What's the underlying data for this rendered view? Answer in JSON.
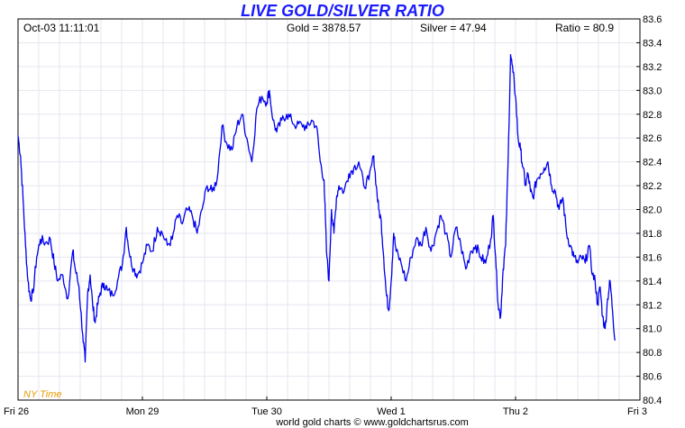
{
  "header": {
    "title": "LIVE GOLD/SILVER RATIO",
    "datetime": "Oct-03  11:11:01",
    "gold": "Gold = 3878.57",
    "silver": "Silver = 47.94",
    "ratio": "Ratio = 80.9"
  },
  "timezone_label": "NY Time",
  "credit": "world gold charts © www.goldchartsrus.com",
  "colors": {
    "title": "#1a1aff",
    "line": "#0000ee",
    "grid": "#e6e6f0",
    "timezone": "#e89a00"
  },
  "chart_data": {
    "type": "line",
    "title": "LIVE GOLD/SILVER RATIO",
    "xlabel": "",
    "ylabel": "",
    "ylim": [
      80.4,
      83.6
    ],
    "y_ticks": [
      "80.4",
      "80.6",
      "80.8",
      "81.0",
      "81.2",
      "81.4",
      "81.6",
      "81.8",
      "82.0",
      "82.2",
      "82.4",
      "82.6",
      "82.8",
      "83.0",
      "83.2",
      "83.4",
      "83.6"
    ],
    "x_ticks": [
      "Fri 26",
      "Mon 29",
      "Tue 30",
      "Wed 1",
      "Thu 2",
      "Fri 3"
    ],
    "x_tick_positions": [
      0,
      1,
      2,
      3,
      4,
      5
    ],
    "xlim": [
      0,
      5
    ],
    "grid": true,
    "series": [
      {
        "values": [
          [
            0.0,
            82.62
          ],
          [
            0.02,
            82.45
          ],
          [
            0.04,
            82.1
          ],
          [
            0.06,
            81.7
          ],
          [
            0.08,
            81.4
          ],
          [
            0.1,
            81.25
          ],
          [
            0.12,
            81.3
          ],
          [
            0.15,
            81.6
          ],
          [
            0.18,
            81.75
          ],
          [
            0.22,
            81.72
          ],
          [
            0.26,
            81.75
          ],
          [
            0.29,
            81.55
          ],
          [
            0.32,
            81.4
          ],
          [
            0.36,
            81.45
          ],
          [
            0.4,
            81.25
          ],
          [
            0.44,
            81.65
          ],
          [
            0.46,
            81.5
          ],
          [
            0.49,
            81.35
          ],
          [
            0.52,
            80.95
          ],
          [
            0.54,
            80.72
          ],
          [
            0.56,
            81.3
          ],
          [
            0.58,
            81.45
          ],
          [
            0.6,
            81.2
          ],
          [
            0.62,
            81.05
          ],
          [
            0.64,
            81.2
          ],
          [
            0.66,
            81.3
          ],
          [
            0.69,
            81.38
          ],
          [
            0.72,
            81.32
          ],
          [
            0.76,
            81.28
          ],
          [
            0.8,
            81.4
          ],
          [
            0.84,
            81.55
          ],
          [
            0.87,
            81.85
          ],
          [
            0.9,
            81.6
          ],
          [
            0.93,
            81.5
          ],
          [
            0.96,
            81.45
          ],
          [
            1.0,
            81.55
          ],
          [
            1.04,
            81.7
          ],
          [
            1.08,
            81.65
          ],
          [
            1.12,
            81.85
          ],
          [
            1.16,
            81.8
          ],
          [
            1.2,
            81.7
          ],
          [
            1.24,
            81.75
          ],
          [
            1.28,
            81.95
          ],
          [
            1.32,
            81.88
          ],
          [
            1.36,
            82.0
          ],
          [
            1.4,
            81.95
          ],
          [
            1.44,
            81.8
          ],
          [
            1.48,
            82.0
          ],
          [
            1.52,
            82.2
          ],
          [
            1.56,
            82.15
          ],
          [
            1.6,
            82.25
          ],
          [
            1.64,
            82.7
          ],
          [
            1.68,
            82.55
          ],
          [
            1.72,
            82.5
          ],
          [
            1.76,
            82.7
          ],
          [
            1.8,
            82.8
          ],
          [
            1.84,
            82.6
          ],
          [
            1.88,
            82.4
          ],
          [
            1.92,
            82.85
          ],
          [
            1.96,
            82.95
          ],
          [
            2.0,
            82.9
          ],
          [
            2.02,
            83.0
          ],
          [
            2.05,
            82.75
          ],
          [
            2.08,
            82.65
          ],
          [
            2.12,
            82.75
          ],
          [
            2.16,
            82.8
          ],
          [
            2.2,
            82.75
          ],
          [
            2.24,
            82.7
          ],
          [
            2.28,
            82.72
          ],
          [
            2.32,
            82.68
          ],
          [
            2.36,
            82.75
          ],
          [
            2.4,
            82.7
          ],
          [
            2.43,
            82.4
          ],
          [
            2.46,
            82.25
          ],
          [
            2.48,
            81.65
          ],
          [
            2.5,
            81.4
          ],
          [
            2.52,
            82.0
          ],
          [
            2.54,
            81.8
          ],
          [
            2.56,
            82.1
          ],
          [
            2.58,
            82.2
          ],
          [
            2.62,
            82.15
          ],
          [
            2.66,
            82.3
          ],
          [
            2.7,
            82.35
          ],
          [
            2.74,
            82.4
          ],
          [
            2.78,
            82.2
          ],
          [
            2.82,
            82.25
          ],
          [
            2.86,
            82.45
          ],
          [
            2.88,
            82.2
          ],
          [
            2.9,
            82.0
          ],
          [
            2.92,
            81.9
          ],
          [
            2.94,
            81.6
          ],
          [
            2.96,
            81.3
          ],
          [
            2.98,
            81.15
          ],
          [
            3.0,
            81.4
          ],
          [
            3.02,
            81.8
          ],
          [
            3.04,
            81.65
          ],
          [
            3.08,
            81.55
          ],
          [
            3.12,
            81.4
          ],
          [
            3.16,
            81.6
          ],
          [
            3.2,
            81.75
          ],
          [
            3.24,
            81.7
          ],
          [
            3.28,
            81.85
          ],
          [
            3.32,
            81.65
          ],
          [
            3.36,
            81.8
          ],
          [
            3.4,
            81.95
          ],
          [
            3.44,
            81.8
          ],
          [
            3.48,
            81.6
          ],
          [
            3.52,
            81.85
          ],
          [
            3.56,
            81.7
          ],
          [
            3.6,
            81.5
          ],
          [
            3.64,
            81.65
          ],
          [
            3.68,
            81.7
          ],
          [
            3.72,
            81.6
          ],
          [
            3.76,
            81.55
          ],
          [
            3.8,
            81.75
          ],
          [
            3.82,
            81.95
          ],
          [
            3.84,
            81.6
          ],
          [
            3.86,
            81.2
          ],
          [
            3.88,
            81.1
          ],
          [
            3.9,
            81.5
          ],
          [
            3.92,
            81.7
          ],
          [
            3.94,
            82.4
          ],
          [
            3.96,
            83.3
          ],
          [
            3.98,
            83.15
          ],
          [
            4.0,
            82.95
          ],
          [
            4.02,
            82.6
          ],
          [
            4.04,
            82.5
          ],
          [
            4.06,
            82.35
          ],
          [
            4.08,
            82.2
          ],
          [
            4.1,
            82.3
          ],
          [
            4.12,
            82.15
          ],
          [
            4.14,
            82.1
          ],
          [
            4.17,
            82.25
          ],
          [
            4.2,
            82.3
          ],
          [
            4.23,
            82.35
          ],
          [
            4.26,
            82.4
          ],
          [
            4.29,
            82.2
          ],
          [
            4.32,
            82.15
          ],
          [
            4.35,
            82.0
          ],
          [
            4.38,
            82.1
          ],
          [
            4.41,
            81.8
          ],
          [
            4.44,
            81.7
          ],
          [
            4.47,
            81.6
          ],
          [
            4.5,
            81.55
          ],
          [
            4.53,
            81.6
          ],
          [
            4.56,
            81.55
          ],
          [
            4.59,
            81.7
          ],
          [
            4.62,
            81.45
          ],
          [
            4.64,
            81.4
          ],
          [
            4.66,
            81.2
          ],
          [
            4.68,
            81.35
          ],
          [
            4.7,
            81.1
          ],
          [
            4.72,
            81.0
          ],
          [
            4.74,
            81.25
          ],
          [
            4.76,
            81.4
          ],
          [
            4.78,
            81.15
          ],
          [
            4.8,
            80.9
          ]
        ]
      }
    ]
  }
}
